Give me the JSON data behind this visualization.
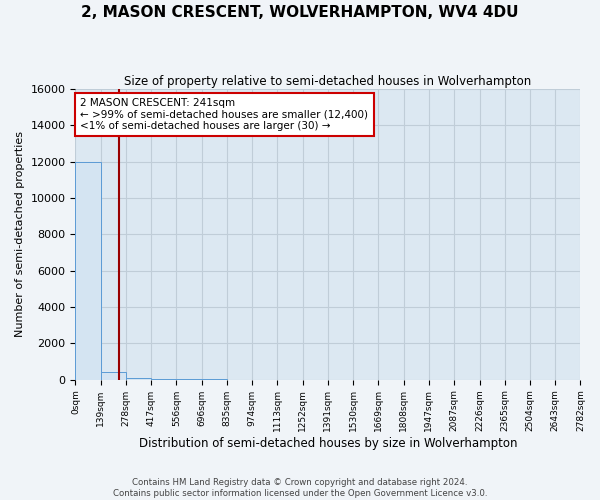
{
  "title": "2, MASON CRESCENT, WOLVERHAMPTON, WV4 4DU",
  "subtitle": "Size of property relative to semi-detached houses in Wolverhampton",
  "xlabel": "Distribution of semi-detached houses by size in Wolverhampton",
  "ylabel": "Number of semi-detached properties",
  "bin_edges": [
    0,
    139,
    278,
    417,
    556,
    696,
    835,
    974,
    1113,
    1252,
    1391,
    1530,
    1669,
    1808,
    1947,
    2087,
    2226,
    2365,
    2504,
    2643,
    2782
  ],
  "bar_heights": [
    12000,
    420,
    80,
    30,
    15,
    8,
    5,
    3,
    2,
    1,
    1,
    1,
    1,
    0,
    0,
    0,
    0,
    0,
    0,
    0
  ],
  "bar_color": "#d4e4f2",
  "bar_edge_color": "#5b9bd5",
  "property_size": 241,
  "annotation_line1": "2 MASON CRESCENT: 241sqm",
  "annotation_line2": "← >99% of semi-detached houses are smaller (12,400)",
  "annotation_line3": "<1% of semi-detached houses are larger (30) →",
  "vline_color": "#990000",
  "annotation_box_facecolor": "#ffffff",
  "annotation_box_edgecolor": "#cc0000",
  "ylim": [
    0,
    16000
  ],
  "yticks": [
    0,
    2000,
    4000,
    6000,
    8000,
    10000,
    12000,
    14000,
    16000
  ],
  "footer_line1": "Contains HM Land Registry data © Crown copyright and database right 2024.",
  "footer_line2": "Contains public sector information licensed under the Open Government Licence v3.0.",
  "figure_bg": "#f0f4f8",
  "plot_bg": "#dce8f2",
  "grid_color": "#c0cdd8"
}
